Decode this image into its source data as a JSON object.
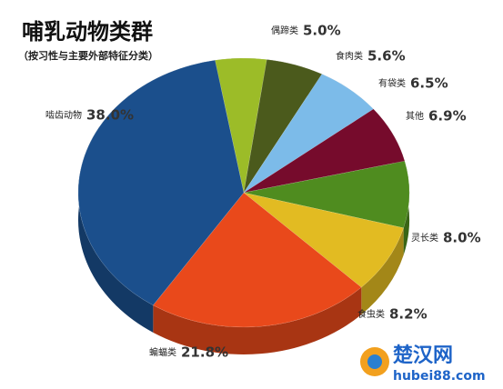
{
  "chart_data": {
    "type": "pie",
    "title": "哺乳动物类群",
    "subtitle": "（按习性与主要外部特征分类）",
    "categories": [
      "偶蹄类",
      "食肉类",
      "有袋类",
      "其他",
      "灵长类",
      "食虫类",
      "蝙蝠类",
      "啮齿动物"
    ],
    "values": [
      5.0,
      5.6,
      6.5,
      6.9,
      8.0,
      8.2,
      21.8,
      38.0
    ],
    "value_labels": [
      "5.0%",
      "5.6%",
      "6.5%",
      "6.9%",
      "8.0%",
      "8.2%",
      "21.8%",
      "38.0%"
    ],
    "colors": [
      "#9cbc28",
      "#4b5a1c",
      "#7cbbe9",
      "#760b2c",
      "#4f8c1f",
      "#e2bb22",
      "#e9491b",
      "#1b4f8c"
    ]
  },
  "watermark": {
    "name": "楚汉网",
    "url": "hubei88.com"
  }
}
